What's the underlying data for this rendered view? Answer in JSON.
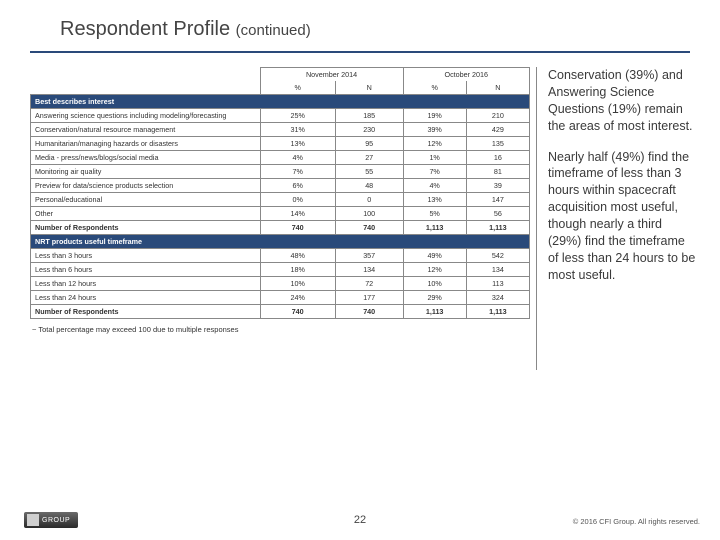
{
  "title_main": "Respondent Profile",
  "title_sub": "(continued)",
  "periods": [
    {
      "label": "November 2014",
      "cols": [
        "%",
        "N"
      ]
    },
    {
      "label": "October 2016",
      "cols": [
        "%",
        "N"
      ]
    }
  ],
  "section1": {
    "header": "Best describes interest",
    "rows": [
      {
        "label": "Answering science questions including modeling/forecasting",
        "v": [
          "25%",
          "185",
          "19%",
          "210"
        ]
      },
      {
        "label": "Conservation/natural resource management",
        "v": [
          "31%",
          "230",
          "39%",
          "429"
        ]
      },
      {
        "label": "Humanitarian/managing hazards or disasters",
        "v": [
          "13%",
          "95",
          "12%",
          "135"
        ]
      },
      {
        "label": "Media - press/news/blogs/social media",
        "v": [
          "4%",
          "27",
          "1%",
          "16"
        ]
      },
      {
        "label": "Monitoring air quality",
        "v": [
          "7%",
          "55",
          "7%",
          "81"
        ]
      },
      {
        "label": "Preview for data/science products selection",
        "v": [
          "6%",
          "48",
          "4%",
          "39"
        ]
      },
      {
        "label": "Personal/educational",
        "v": [
          "0%",
          "0",
          "13%",
          "147"
        ]
      },
      {
        "label": "Other",
        "v": [
          "14%",
          "100",
          "5%",
          "56"
        ]
      }
    ],
    "total": {
      "label": "Number of Respondents",
      "v": [
        "740",
        "740",
        "1,113",
        "1,113"
      ]
    }
  },
  "section2": {
    "header": "NRT products useful timeframe",
    "rows": [
      {
        "label": "Less than 3 hours",
        "v": [
          "48%",
          "357",
          "49%",
          "542"
        ]
      },
      {
        "label": "Less than 6 hours",
        "v": [
          "18%",
          "134",
          "12%",
          "134"
        ]
      },
      {
        "label": "Less than 12 hours",
        "v": [
          "10%",
          "72",
          "10%",
          "113"
        ]
      },
      {
        "label": "Less than 24 hours",
        "v": [
          "24%",
          "177",
          "29%",
          "324"
        ]
      }
    ],
    "total": {
      "label": "Number of Respondents",
      "v": [
        "740",
        "740",
        "1,113",
        "1,113"
      ]
    }
  },
  "footnote": "~ Total percentage may exceed 100 due to multiple responses",
  "commentary": {
    "p1": "Conservation (39%) and Answering Science Questions (19%) remain the areas of most interest.",
    "p2": "Nearly half (49%) find the timeframe of less than 3 hours within spacecraft acquisition most useful, though nearly a third (29%) find the timeframe of less than 24 hours to be most useful."
  },
  "page_number": "22",
  "copyright": "© 2016 CFI Group. All rights reserved.",
  "logo_text": "GROUP",
  "colors": {
    "header_rule": "#2a4a7a",
    "section_bg": "#2a4a7a",
    "border": "#888888",
    "text": "#333333"
  }
}
